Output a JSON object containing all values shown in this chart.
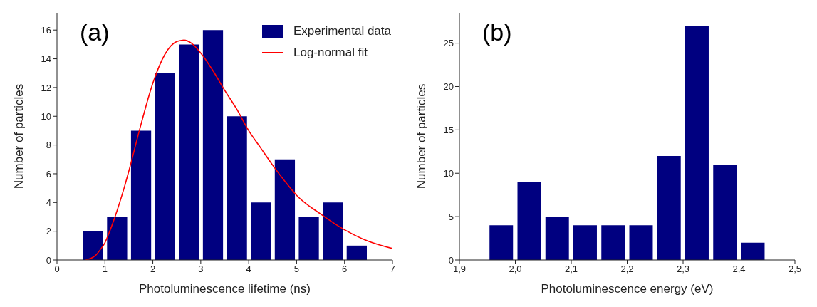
{
  "chart_data": [
    {
      "type": "histogram",
      "annotations": [
        "(a)"
      ],
      "xlabel": "Photoluminescence lifetime (ns)",
      "ylabel": "Number of particles",
      "bins": [
        0.5,
        1,
        1.5,
        2,
        2.5,
        3,
        3.5,
        4,
        4.5,
        5,
        5.5,
        6,
        6.5
      ],
      "series": [
        {
          "name": "Experimental data",
          "type": "histogram",
          "color": "#000080",
          "values": [
            2,
            3,
            9,
            13,
            15,
            16,
            10,
            4,
            7,
            3,
            4,
            1
          ]
        },
        {
          "name": "Log-normal fit",
          "type": "line",
          "color": "#ff0000",
          "x": [
            0.6,
            0.7,
            0.8,
            0.9,
            1,
            1.1,
            1.25,
            1.4,
            1.5,
            1.75,
            2,
            2.25,
            2.5,
            2.65,
            2.8,
            3,
            3.25,
            3.5,
            3.75,
            4,
            4.25,
            4.5,
            4.75,
            5,
            5.5,
            6,
            6.5,
            7
          ],
          "values": [
            0.02,
            0.1,
            0.3,
            0.7,
            1.2,
            2,
            3.4,
            5,
            6.2,
            9.4,
            12.3,
            14.3,
            15.2,
            15.3,
            15.1,
            14.4,
            13.2,
            11.8,
            10.5,
            9,
            7.8,
            6.6,
            5.5,
            4.5,
            3.2,
            2.1,
            1.3,
            0.8
          ]
        }
      ],
      "xlim": [
        0,
        7
      ],
      "xticks": [
        0,
        1,
        2,
        3,
        4,
        5,
        6,
        7
      ],
      "ylim": [
        0,
        17.2
      ],
      "yticks": [
        0,
        2,
        4,
        6,
        8,
        10,
        12,
        14,
        16
      ],
      "legend": "top right"
    },
    {
      "type": "histogram",
      "annotations": [
        "(b)"
      ],
      "xlabel": "Photoluminescence energy (eV)",
      "ylabel": "Number of particles",
      "bins": [
        1.95,
        2,
        2.05,
        2.1,
        2.15,
        2.2,
        2.25,
        2.3,
        2.35,
        2.4,
        2.45
      ],
      "color": "#000080",
      "values": [
        4,
        9,
        5,
        4,
        4,
        4,
        12,
        27,
        11,
        2
      ],
      "xlim": [
        1.9,
        2.5
      ],
      "xticks": [
        {
          "value": 1.9,
          "label": "1,9"
        },
        {
          "value": 2,
          "label": "2,0"
        },
        {
          "value": 2.1,
          "label": "2,1"
        },
        {
          "value": 2.2,
          "label": "2,2"
        },
        {
          "value": 2.3,
          "label": "2,3"
        },
        {
          "value": 2.4,
          "label": "2,4"
        },
        {
          "value": 2.5,
          "label": "2,5"
        }
      ],
      "ylim": [
        0,
        28.5
      ],
      "yticks": [
        0,
        5,
        10,
        15,
        20,
        25
      ]
    }
  ]
}
